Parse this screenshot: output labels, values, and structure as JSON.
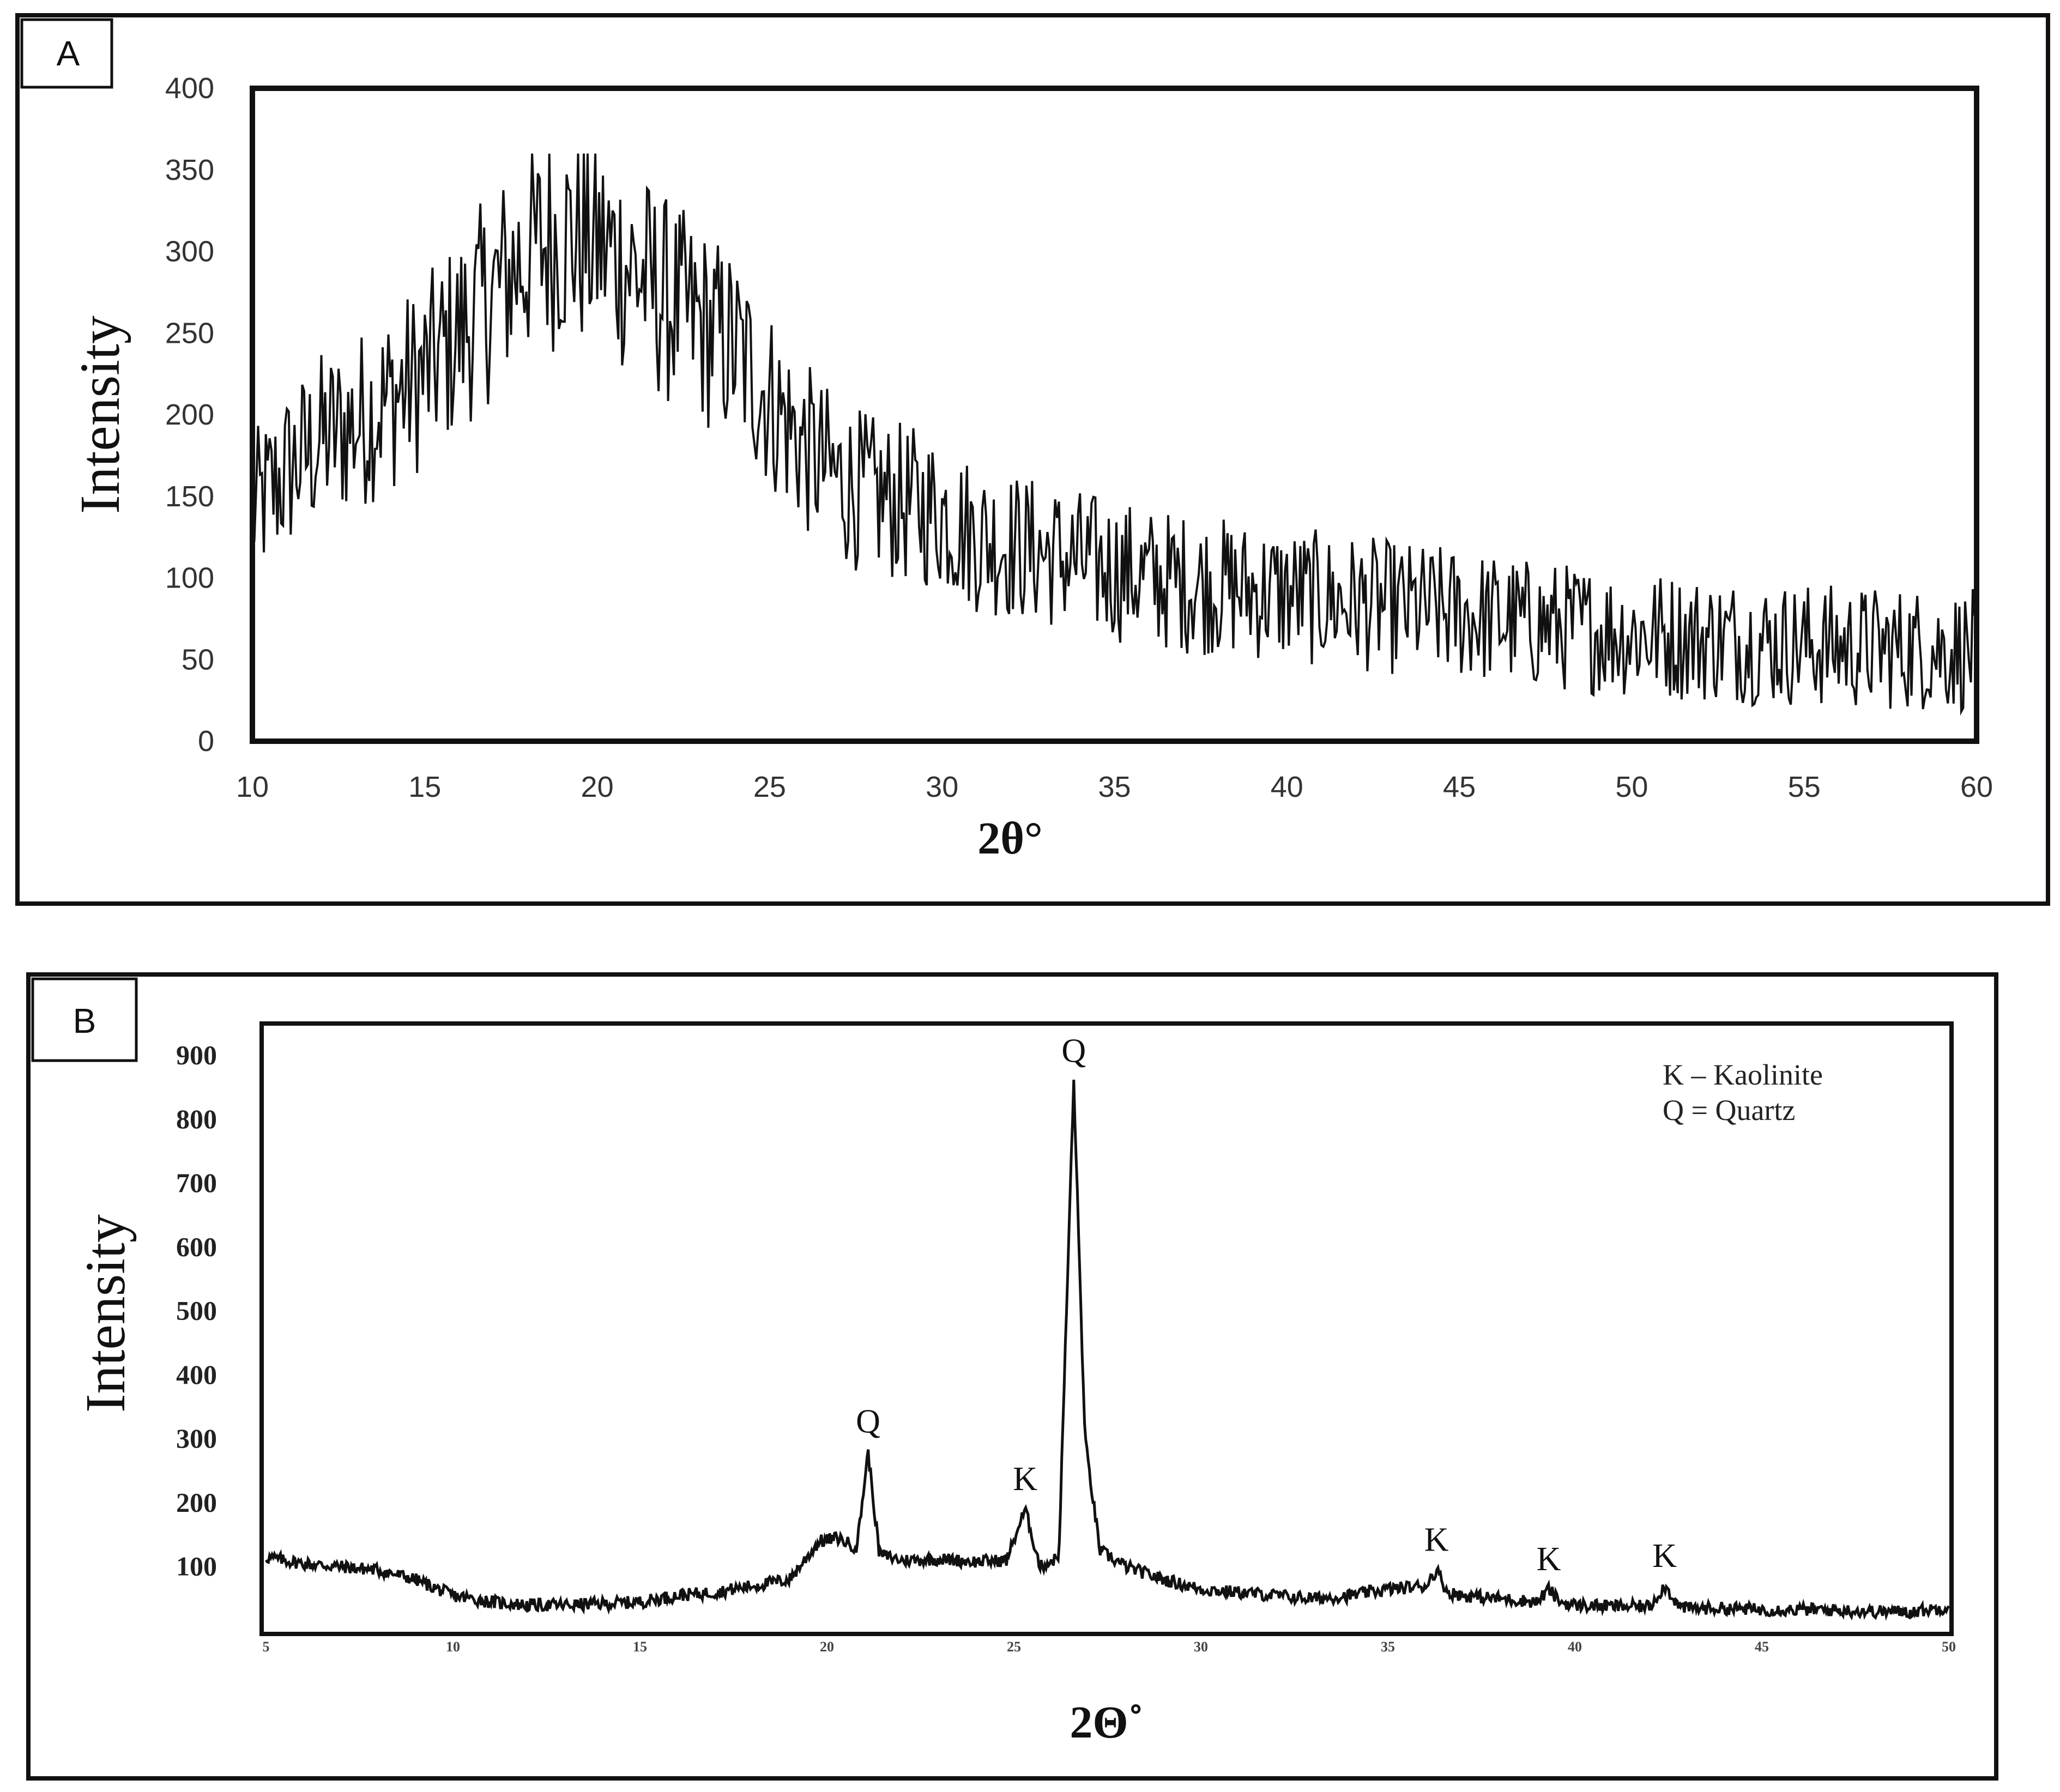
{
  "chart_data": [
    {
      "panel": "A",
      "type": "line",
      "title": "",
      "xlabel": "2θ°",
      "ylabel": "Intensity",
      "xlim": [
        10,
        60
      ],
      "ylim": [
        0,
        400
      ],
      "xticks": [
        10,
        15,
        20,
        25,
        30,
        35,
        40,
        45,
        50,
        55,
        60
      ],
      "yticks": [
        0,
        50,
        100,
        150,
        200,
        250,
        300,
        350,
        400
      ],
      "grid": false,
      "series": [
        {
          "x": [
            10,
            11,
            12,
            13,
            14,
            15,
            16,
            17,
            18,
            19,
            20,
            21,
            22,
            23,
            24,
            25,
            26,
            27,
            28,
            29,
            30,
            31,
            32,
            33,
            34,
            35,
            36,
            37,
            38,
            39,
            40,
            41,
            42,
            43,
            44,
            45,
            46,
            47,
            48,
            49,
            50,
            51,
            52,
            53,
            54,
            55,
            56,
            57,
            58,
            59,
            60
          ],
          "y": [
            140,
            165,
            185,
            195,
            210,
            225,
            250,
            275,
            300,
            310,
            305,
            290,
            270,
            255,
            240,
            210,
            180,
            160,
            150,
            145,
            140,
            125,
            120,
            115,
            110,
            105,
            100,
            97,
            95,
            92,
            90,
            87,
            85,
            82,
            80,
            78,
            75,
            72,
            70,
            68,
            66,
            65,
            63,
            62,
            60,
            59,
            58,
            57,
            57,
            56,
            55
          ],
          "noise": 70
        }
      ]
    },
    {
      "panel": "B",
      "type": "line",
      "title": "",
      "xlabel": "2Θ˚",
      "ylabel": "Intensity",
      "xlim": [
        5,
        50
      ],
      "ylim": [
        0,
        950
      ],
      "xticks": [
        5,
        10,
        15,
        20,
        25,
        30,
        35,
        40,
        45,
        50
      ],
      "yticks": [
        100,
        200,
        300,
        400,
        500,
        600,
        700,
        800,
        900
      ],
      "grid": false,
      "legend": {
        "placement": "top-right",
        "items": [
          "K – Kaolinite",
          "Q = Quartz"
        ]
      },
      "annotations": [
        {
          "label": "Q",
          "x": 26.6,
          "y": 860
        },
        {
          "label": "Q",
          "x": 21.1,
          "y": 280
        },
        {
          "label": "K",
          "x": 25.3,
          "y": 190
        },
        {
          "label": "K",
          "x": 36.3,
          "y": 95
        },
        {
          "label": "K",
          "x": 39.3,
          "y": 65
        },
        {
          "label": "K",
          "x": 42.4,
          "y": 70
        }
      ],
      "series": [
        {
          "x": [
            5,
            6,
            7,
            8,
            9,
            10,
            11,
            12,
            13,
            14,
            15,
            16,
            17,
            18,
            19,
            19.8,
            20.3,
            20.8,
            21.1,
            21.4,
            22,
            23,
            24,
            24.8,
            25.3,
            25.7,
            26.2,
            26.6,
            26.9,
            27.3,
            28,
            29,
            30,
            31,
            32,
            33,
            34,
            35,
            36,
            36.3,
            36.6,
            37,
            38,
            39,
            39.3,
            39.6,
            40,
            41,
            42,
            42.4,
            42.8,
            43,
            44,
            45,
            46,
            47,
            48,
            49,
            49.8,
            50
          ],
          "y": [
            115,
            105,
            100,
            95,
            80,
            55,
            45,
            40,
            40,
            42,
            45,
            55,
            60,
            70,
            80,
            140,
            145,
            130,
            280,
            120,
            110,
            112,
            108,
            110,
            190,
            100,
            115,
            860,
            300,
            125,
            100,
            80,
            65,
            60,
            55,
            50,
            55,
            65,
            70,
            95,
            60,
            55,
            50,
            45,
            65,
            45,
            40,
            38,
            38,
            70,
            38,
            35,
            35,
            33,
            33,
            32,
            30,
            30,
            35,
            40
          ],
          "noise": 10
        }
      ]
    }
  ]
}
